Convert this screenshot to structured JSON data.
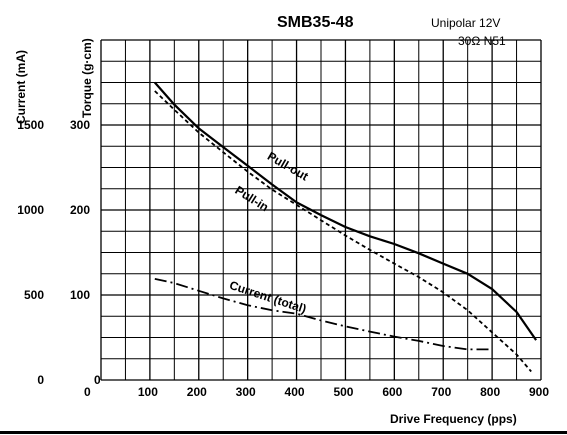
{
  "chart_data": {
    "type": "line",
    "title": "SMB35-48",
    "spec_lines": [
      "Unipolar   12V",
      "30Ω   N51"
    ],
    "xlabel": "Drive Frequency (pps)",
    "ylabel_left": "Current (mA)",
    "ylabel_torque": "Torque (g·cm)",
    "xlim": [
      0,
      900
    ],
    "x_ticks": [
      0,
      100,
      200,
      300,
      400,
      500,
      600,
      700,
      800,
      900
    ],
    "x_tick_labels": [
      "0",
      "100",
      "200",
      "300",
      "400",
      "500",
      "600",
      "700",
      "800",
      "900"
    ],
    "torque_lim": [
      0,
      400
    ],
    "torque_ticks": [
      0,
      100,
      200,
      300
    ],
    "torque_tick_labels": [
      "0",
      "100",
      "200",
      "300"
    ],
    "current_ticks": [
      0,
      500,
      1000,
      1500
    ],
    "current_tick_labels": [
      "0",
      "500",
      "1000",
      "1500"
    ],
    "current_per_torque": 5,
    "grid": true,
    "series": [
      {
        "name": "Pull-out",
        "axis": "torque",
        "style": "solid",
        "x": [
          110,
          150,
          200,
          250,
          300,
          350,
          400,
          450,
          500,
          550,
          600,
          650,
          700,
          750,
          800,
          850,
          890
        ],
        "y": [
          350,
          324,
          296,
          274,
          252,
          230,
          209,
          194,
          180,
          169,
          160,
          149,
          137,
          125,
          107,
          80,
          47
        ]
      },
      {
        "name": "Pull-in",
        "axis": "torque",
        "style": "dashed",
        "x": [
          110,
          150,
          200,
          250,
          300,
          350,
          400,
          450,
          500,
          550,
          600,
          650,
          700,
          750,
          800,
          850,
          880
        ],
        "y": [
          340,
          318,
          291,
          268,
          245,
          224,
          206,
          188,
          170,
          153,
          137,
          121,
          103,
          82,
          56,
          30,
          10
        ]
      },
      {
        "name": "Current (total)",
        "axis": "current",
        "style": "dashdot",
        "x": [
          110,
          150,
          200,
          250,
          300,
          350,
          400,
          450,
          500,
          550,
          600,
          650,
          700,
          750,
          800
        ],
        "y": [
          595,
          570,
          525,
          480,
          440,
          410,
          390,
          350,
          315,
          285,
          255,
          230,
          200,
          180,
          180
        ]
      }
    ]
  }
}
